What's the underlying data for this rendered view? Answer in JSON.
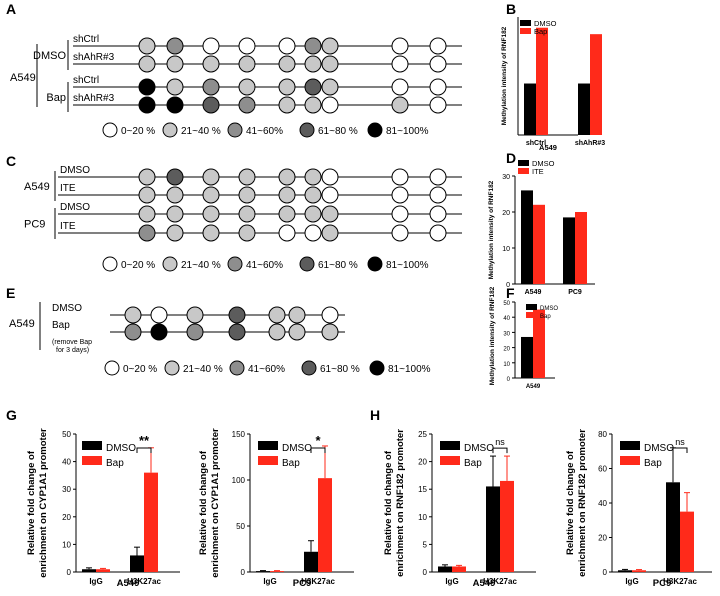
{
  "panels": {
    "A": "A",
    "B": "B",
    "C": "C",
    "D": "D",
    "E": "E",
    "F": "F",
    "G": "G",
    "H": "H"
  },
  "colors": {
    "dmso": "#000000",
    "treat": "#ff2a1a",
    "levels": [
      "#ffffff",
      "#c8c8c8",
      "#8e8e8e",
      "#5c5c5c",
      "#000000"
    ]
  },
  "legend": {
    "items": [
      "0~20 %",
      "21~40 %",
      "41~60%",
      "61~80 %",
      "81~100%"
    ]
  },
  "panelA": {
    "cell": "A549",
    "groups": [
      {
        "label": "DMSO",
        "rows": [
          {
            "label": "shCtrl",
            "levels": [
              1,
              2,
              0,
              0,
              0,
              2,
              1,
              0,
              0
            ]
          },
          {
            "label": "shAhR#3",
            "levels": [
              1,
              1,
              1,
              1,
              1,
              1,
              1,
              0,
              0
            ]
          }
        ]
      },
      {
        "label": "Bap",
        "rows": [
          {
            "label": "shCtrl",
            "levels": [
              4,
              1,
              2,
              1,
              1,
              3,
              1,
              0,
              0
            ]
          },
          {
            "label": "shAhR#3",
            "levels": [
              4,
              4,
              3,
              2,
              1,
              1,
              0,
              1,
              0
            ]
          }
        ]
      }
    ]
  },
  "panelC": {
    "groups": [
      {
        "label": "A549",
        "rows": [
          {
            "label": "DMSO",
            "levels": [
              1,
              3,
              1,
              1,
              1,
              1,
              0,
              0,
              0
            ]
          },
          {
            "label": "ITE",
            "levels": [
              1,
              1,
              1,
              1,
              1,
              1,
              0,
              0,
              0
            ]
          }
        ]
      },
      {
        "label": "PC9",
        "rows": [
          {
            "label": "DMSO",
            "levels": [
              1,
              1,
              1,
              1,
              1,
              1,
              1,
              0,
              0
            ]
          },
          {
            "label": "ITE",
            "levels": [
              2,
              1,
              1,
              1,
              0,
              0,
              1,
              0,
              0
            ]
          }
        ]
      }
    ]
  },
  "panelE": {
    "cell": "A549",
    "rows": [
      {
        "label": "DMSO",
        "levels": [
          1,
          0,
          1,
          3,
          1,
          1,
          0
        ]
      },
      {
        "label": "Bap",
        "sub": [
          "(remove Bap",
          "for 3 days)"
        ],
        "levels": [
          2,
          4,
          2,
          3,
          1,
          1,
          1
        ]
      }
    ]
  },
  "chart_data": [
    {
      "panel": "B",
      "type": "bar",
      "title": "A549",
      "ylabel": "Methylation intensity of RNF182",
      "categories": [
        "shCtrl",
        "shAhR#3"
      ],
      "series": [
        {
          "name": "DMSO",
          "values": [
            24,
            24
          ]
        },
        {
          "name": "Bap",
          "values": [
            50,
            47
          ]
        }
      ],
      "ylim": [
        0,
        55
      ],
      "legend": "top-left"
    },
    {
      "panel": "D",
      "type": "bar",
      "title": "",
      "ylabel": "Methylation intensity of RNF182",
      "categories": [
        "A549",
        "PC9"
      ],
      "series": [
        {
          "name": "DMSO",
          "values": [
            26,
            18.5
          ]
        },
        {
          "name": "ITE",
          "values": [
            22,
            20
          ]
        }
      ],
      "ylim": [
        0,
        30
      ],
      "yticks": [
        "0",
        "10",
        "20",
        "30"
      ],
      "legend": "top-left"
    },
    {
      "panel": "F",
      "type": "bar",
      "title": "",
      "ylabel": "Methylation intensity of RNF182",
      "categories": [
        "A549"
      ],
      "series": [
        {
          "name": "DMSO",
          "values": [
            27
          ]
        },
        {
          "name": "Bap",
          "values": [
            45
          ]
        }
      ],
      "ylim": [
        0,
        50
      ],
      "yticks": [
        "0",
        "10",
        "20",
        "30",
        "40",
        "50"
      ],
      "legend": "top-right"
    },
    {
      "panel": "G",
      "type": "bar",
      "title": "A549",
      "ylabel": [
        "Relative fold change of",
        "enrichment on CYP1A1 promoter"
      ],
      "categories": [
        "IgG",
        "H3K27ac"
      ],
      "series": [
        {
          "name": "DMSO",
          "values": [
            1,
            6
          ],
          "errors": [
            0.5,
            3
          ]
        },
        {
          "name": "Bap",
          "values": [
            1,
            36
          ],
          "errors": [
            0.3,
            9
          ]
        }
      ],
      "ylim": [
        0,
        50
      ],
      "yticks": [
        "0",
        "10",
        "20",
        "30",
        "40",
        "50"
      ],
      "significance": "**",
      "legend": "top-left"
    },
    {
      "panel": "G",
      "type": "bar",
      "title": "PC9",
      "ylabel": [
        "Relative fold change of",
        "enrichment on CYP1A1 promoter"
      ],
      "categories": [
        "IgG",
        "H3K27ac"
      ],
      "series": [
        {
          "name": "DMSO",
          "values": [
            1,
            22
          ],
          "errors": [
            0.5,
            12
          ]
        },
        {
          "name": "Bap",
          "values": [
            1,
            102
          ],
          "errors": [
            0.5,
            35
          ]
        }
      ],
      "ylim": [
        0,
        150
      ],
      "yticks": [
        "0",
        "50",
        "100",
        "150"
      ],
      "significance": "*",
      "legend": "top-left"
    },
    {
      "panel": "H",
      "type": "bar",
      "title": "A549",
      "ylabel": [
        "Relative fold change of",
        "enrichment on RNF182 promoter"
      ],
      "categories": [
        "IgG",
        "H3K27ac"
      ],
      "series": [
        {
          "name": "DMSO",
          "values": [
            1,
            15.5
          ],
          "errors": [
            0.3,
            5.5
          ]
        },
        {
          "name": "Bap",
          "values": [
            1,
            16.5
          ],
          "errors": [
            0.2,
            4.5
          ]
        }
      ],
      "ylim": [
        0,
        25
      ],
      "yticks": [
        "0",
        "5",
        "10",
        "15",
        "20",
        "25"
      ],
      "significance": "ns",
      "legend": "top-left"
    },
    {
      "panel": "H",
      "type": "bar",
      "title": "PC9",
      "ylabel": [
        "Relative fold change of",
        "enrichment on RNF182 promoter"
      ],
      "categories": [
        "IgG",
        "H3K27ac"
      ],
      "series": [
        {
          "name": "DMSO",
          "values": [
            1,
            52
          ],
          "errors": [
            0.5,
            20
          ]
        },
        {
          "name": "Bap",
          "values": [
            1,
            35
          ],
          "errors": [
            0.4,
            11
          ]
        }
      ],
      "ylim": [
        0,
        80
      ],
      "yticks": [
        "0",
        "20",
        "40",
        "60",
        "80"
      ],
      "significance": "ns",
      "legend": "top-left"
    }
  ]
}
